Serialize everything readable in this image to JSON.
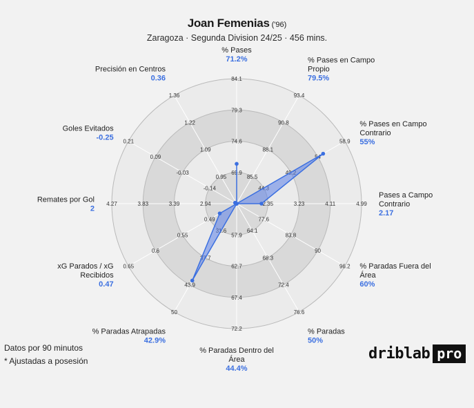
{
  "header": {
    "player": "Joan Femenias",
    "year": "('96)",
    "subtitle": "Zaragoza · Segunda Division 24/25 · 456 mins."
  },
  "footnotes": {
    "line1": "Datos por 90 minutos",
    "line2": "* Ajustadas a posesión"
  },
  "brand": {
    "word": "driblab",
    "badge": "pro"
  },
  "colors": {
    "accent": "#3b6fe0",
    "fill": "#5b7fe8",
    "ring_light": "#ebebeb",
    "ring_dark": "#d9d9d9"
  },
  "chart_data": {
    "type": "radar",
    "rings": 4,
    "metrics": [
      {
        "name": [
          "% Pases"
        ],
        "value_label": "71.2%",
        "value": 71.2,
        "ticks": [
          "69.9",
          "74.6",
          "79.3",
          "84.1"
        ]
      },
      {
        "name": [
          "% Pases en Campo",
          "Propio"
        ],
        "value_label": "79.5%",
        "value": 79.5,
        "ticks": [
          "85.5",
          "88.1",
          "90.8",
          "93.4"
        ]
      },
      {
        "name": [
          "% Pases en Campo",
          "Contrario"
        ],
        "value_label": "55%",
        "value": 55,
        "ticks": [
          "44.3",
          "49.2",
          "54",
          "58.9"
        ]
      },
      {
        "name": [
          "Pases a Campo",
          "Contrario"
        ],
        "value_label": "2.17",
        "value": 2.17,
        "ticks": [
          "2.35",
          "3.23",
          "4.11",
          "4.99"
        ]
      },
      {
        "name": [
          "% Paradas Fuera del",
          "Área"
        ],
        "value_label": "60%",
        "value": 60,
        "ticks": [
          "77.6",
          "83.8",
          "90",
          "96.2"
        ]
      },
      {
        "name": [
          "% Paradas"
        ],
        "value_label": "50%",
        "value": 50,
        "ticks": [
          "64.1",
          "68.3",
          "72.4",
          "76.6"
        ]
      },
      {
        "name": [
          "% Paradas Dentro del",
          "Área"
        ],
        "value_label": "44.4%",
        "value": 44.4,
        "ticks": [
          "57.9",
          "62.7",
          "67.4",
          "72.2"
        ]
      },
      {
        "name": [
          "% Paradas Atrapadas"
        ],
        "value_label": "42.9%",
        "value": 42.9,
        "ticks": [
          "31.6",
          "37.7",
          "43.9",
          "50"
        ]
      },
      {
        "name": [
          "xG Parados / xG",
          "Recibidos"
        ],
        "value_label": "0.47",
        "value": 0.47,
        "ticks": [
          "0.49",
          "0.55",
          "0.6",
          "0.65"
        ]
      },
      {
        "name": [
          "Remates por Gol"
        ],
        "value_label": "2",
        "value": 2,
        "ticks": [
          "2.94",
          "3.39",
          "3.83",
          "4.27"
        ]
      },
      {
        "name": [
          "Goles Evitados"
        ],
        "value_label": "-0.25",
        "value": -0.25,
        "ticks": [
          "-0.14",
          "-0.03",
          "0.09",
          "0.21"
        ]
      },
      {
        "name": [
          "Precisión en Centros"
        ],
        "value_label": "0.36",
        "value": 0.36,
        "ticks": [
          "0.95",
          "1.09",
          "1.22",
          "1.36"
        ]
      }
    ]
  }
}
